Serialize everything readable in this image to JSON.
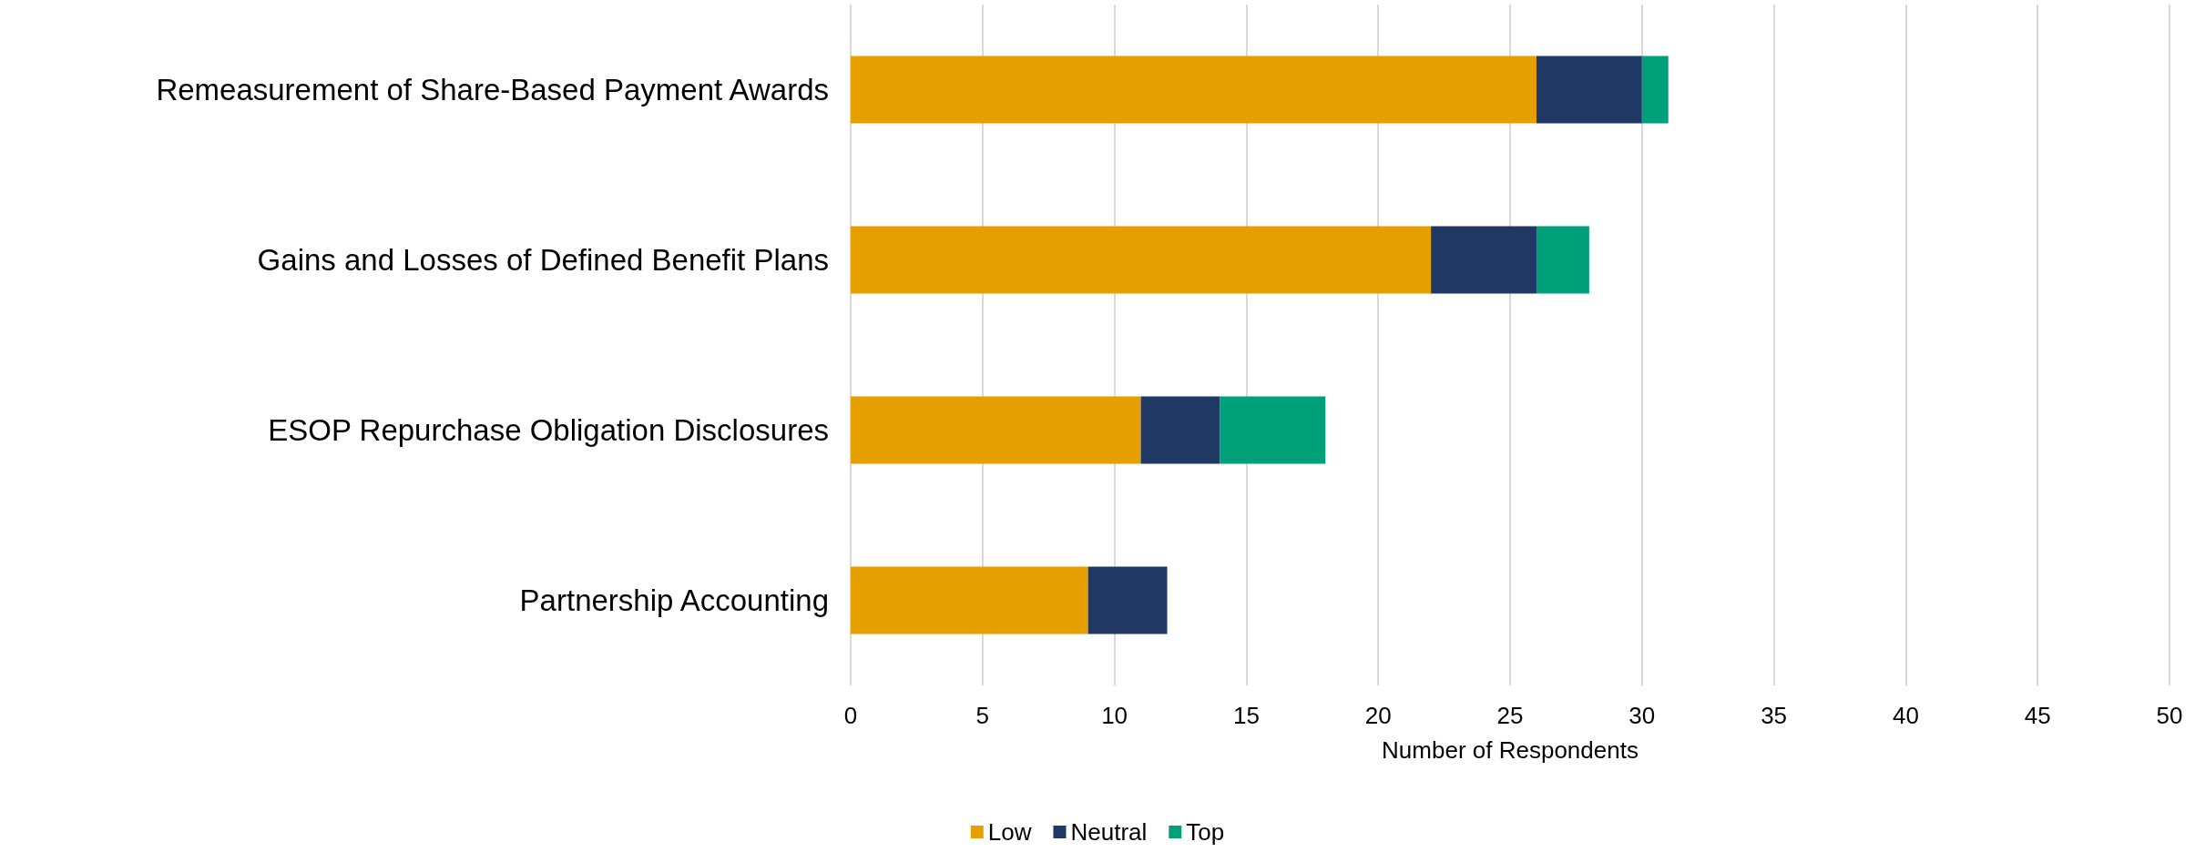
{
  "chart_data": {
    "type": "bar",
    "orientation": "horizontal",
    "stacked": true,
    "categories": [
      "Remeasurement of Share-Based Payment Awards",
      "Gains and Losses of Defined Benefit Plans",
      "ESOP Repurchase Obligation Disclosures",
      "Partnership Accounting"
    ],
    "series": [
      {
        "name": "Low",
        "color": "#e5a000",
        "values": [
          26,
          22,
          11,
          9
        ]
      },
      {
        "name": "Neutral",
        "color": "#1f3864",
        "values": [
          4,
          4,
          3,
          3
        ]
      },
      {
        "name": "Top",
        "color": "#00a07a",
        "values": [
          1,
          2,
          4,
          0
        ]
      }
    ],
    "xlabel": "Number of Respondents",
    "xlim": [
      0,
      50
    ],
    "xticks": [
      0,
      5,
      10,
      15,
      20,
      25,
      30,
      35,
      40,
      45,
      50
    ],
    "grid": "x",
    "legend": "bottom"
  }
}
